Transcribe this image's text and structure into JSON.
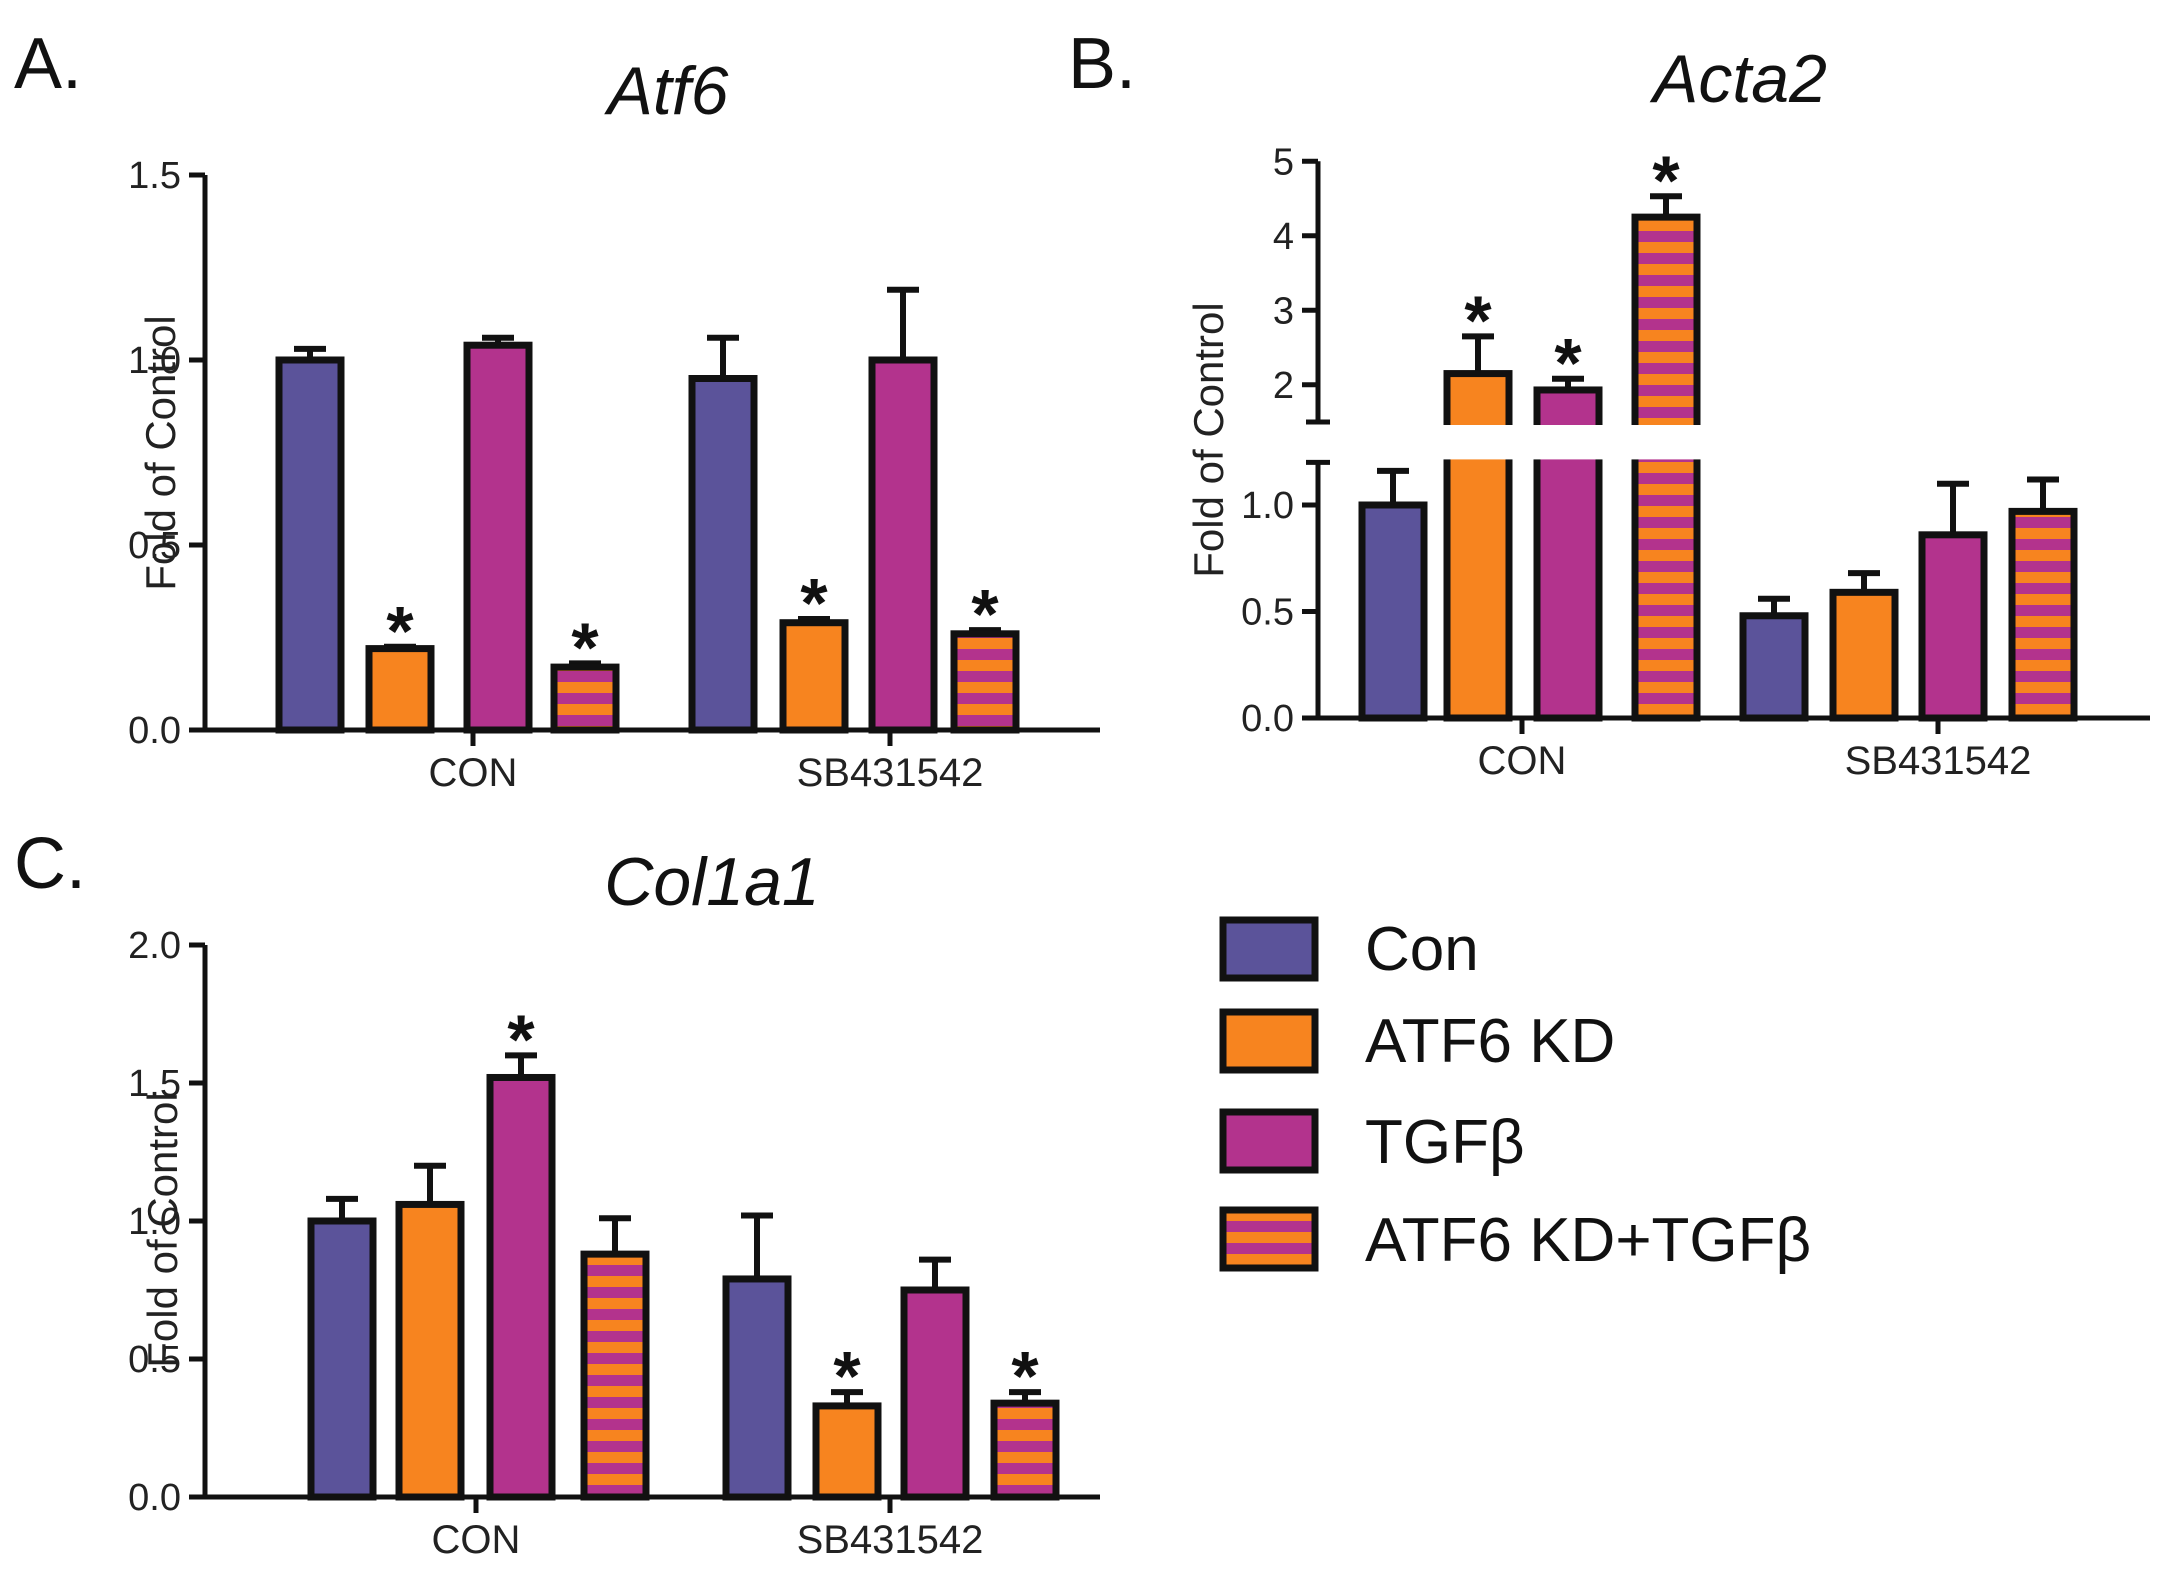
{
  "colors": {
    "con": "#5b539a",
    "atf6_kd": "#f7841f",
    "tgfb": "#b3338d",
    "stripe_a": "#f7841f",
    "stripe_b": "#b3338d",
    "outline": "#111111"
  },
  "legend": {
    "items": [
      {
        "label": "Con",
        "fill": "con"
      },
      {
        "label": "ATF6 KD",
        "fill": "atf6_kd"
      },
      {
        "label": "TGFβ",
        "fill": "tgfb"
      },
      {
        "label": "ATF6 KD+TGFβ",
        "fill": "striped"
      }
    ]
  },
  "chart_data": [
    {
      "panel": "A.",
      "type": "bar",
      "title": "Atf6",
      "ylabel": "Fold of Control",
      "xlabel": "",
      "categories": [
        "CON",
        "SB431542"
      ],
      "ylim": [
        0,
        1.5
      ],
      "yticks": [
        "0.0",
        "0.5",
        "1.0",
        "1.5"
      ],
      "series": [
        {
          "name": "Con",
          "values": [
            1.0,
            0.95
          ],
          "errors": [
            0.03,
            0.11
          ],
          "sig": [
            false,
            false
          ]
        },
        {
          "name": "ATF6 KD",
          "values": [
            0.22,
            0.29
          ],
          "errors": [
            0.005,
            0.01
          ],
          "sig": [
            true,
            true
          ]
        },
        {
          "name": "TGFβ",
          "values": [
            1.04,
            1.0
          ],
          "errors": [
            0.02,
            0.19
          ],
          "sig": [
            false,
            false
          ]
        },
        {
          "name": "ATF6 KD+TGFβ",
          "values": [
            0.17,
            0.26
          ],
          "errors": [
            0.01,
            0.01
          ],
          "sig": [
            true,
            true
          ]
        }
      ]
    },
    {
      "panel": "B.",
      "type": "bar",
      "title": "Acta2",
      "ylabel": "Fold of Control",
      "xlabel": "",
      "categories": [
        "CON",
        "SB431542"
      ],
      "axis_break": {
        "lower_range": [
          0,
          1.2
        ],
        "upper_range": [
          1.5,
          5
        ]
      },
      "yticks_lower": [
        "0.0",
        "0.5",
        "1.0"
      ],
      "yticks_upper": [
        "2",
        "3",
        "4",
        "5"
      ],
      "series": [
        {
          "name": "Con",
          "values": [
            1.0,
            0.48
          ],
          "errors": [
            0.16,
            0.08
          ],
          "sig": [
            false,
            false
          ]
        },
        {
          "name": "ATF6 KD",
          "values": [
            2.15,
            0.59
          ],
          "errors": [
            0.5,
            0.09
          ],
          "sig": [
            true,
            false
          ]
        },
        {
          "name": "TGFβ",
          "values": [
            1.93,
            0.86
          ],
          "errors": [
            0.15,
            0.24
          ],
          "sig": [
            true,
            false
          ]
        },
        {
          "name": "ATF6 KD+TGFβ",
          "values": [
            4.25,
            0.97
          ],
          "errors": [
            0.28,
            0.15
          ],
          "sig": [
            true,
            false
          ]
        }
      ]
    },
    {
      "panel": "C.",
      "type": "bar",
      "title": "Col1a1",
      "ylabel": "Fold of Control",
      "xlabel": "",
      "categories": [
        "CON",
        "SB431542"
      ],
      "ylim": [
        0,
        2.0
      ],
      "yticks": [
        "0.0",
        "0.5",
        "1.0",
        "1.5",
        "2.0"
      ],
      "series": [
        {
          "name": "Con",
          "values": [
            1.0,
            0.79
          ],
          "errors": [
            0.08,
            0.23
          ],
          "sig": [
            false,
            false
          ]
        },
        {
          "name": "ATF6 KD",
          "values": [
            1.06,
            0.33
          ],
          "errors": [
            0.14,
            0.05
          ],
          "sig": [
            false,
            true
          ]
        },
        {
          "name": "TGFβ",
          "values": [
            1.52,
            0.75
          ],
          "errors": [
            0.08,
            0.11
          ],
          "sig": [
            true,
            false
          ]
        },
        {
          "name": "ATF6 KD+TGFβ",
          "values": [
            0.88,
            0.34
          ],
          "errors": [
            0.13,
            0.04
          ],
          "sig": [
            false,
            true
          ]
        }
      ]
    }
  ]
}
